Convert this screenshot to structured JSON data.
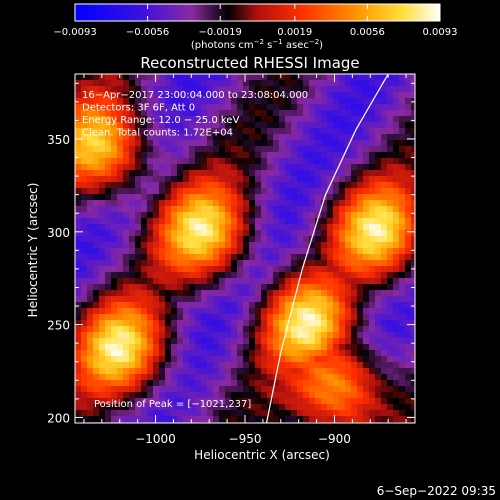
{
  "chart_data": {
    "type": "heatmap",
    "title": "Reconstructed RHESSI Image",
    "xlabel": "Heliocentric X (arcsec)",
    "ylabel": "Heliocentric Y (arcsec)",
    "xlim": [
      -1045,
      -855
    ],
    "ylim": [
      197,
      385
    ],
    "xticks": [
      -1000,
      -950,
      -900
    ],
    "xtick_labels": [
      "−1000",
      "−950",
      "−900"
    ],
    "yticks": [
      200,
      250,
      300,
      350
    ],
    "ytick_labels": [
      "200",
      "250",
      "300",
      "350"
    ],
    "colorbar": {
      "min": -0.0093,
      "max": 0.0093,
      "ticks": [
        -0.0093,
        -0.0056,
        -0.0019,
        0.0019,
        0.0056,
        0.0093
      ],
      "tick_labels": [
        "−0.0093",
        "−0.0056",
        "−0.0019",
        "0.0019",
        "0.0056",
        "0.0093"
      ],
      "units_text": "(photons cm",
      "units_exp1": "−2",
      "units_mid": " s",
      "units_exp2": "−1",
      "units_end": " asec",
      "units_exp3": "−2",
      "units_close": ")"
    },
    "annotations": [
      "16−Apr−2017 23:00:04.000 to 23:08:04.000",
      "Detectors: 3F 6F, Att 0",
      "Energy Range: 12.0 − 25.0 keV",
      "Clean.  Total counts: 1.72E+04"
    ],
    "peak_label": "Position of Peak = [−1021,237]",
    "limb_curve": [
      [
        -938,
        197
      ],
      [
        -930,
        235
      ],
      [
        -918,
        280
      ],
      [
        -905,
        320
      ],
      [
        -888,
        355
      ],
      [
        -870,
        385
      ]
    ],
    "pattern": {
      "stripe_direction": "diagonal, lower-left to upper-right",
      "bright_blobs": [
        [
          -1020,
          237
        ],
        [
          -973,
          300
        ],
        [
          -1030,
          345
        ],
        [
          -898,
          215
        ],
        [
          -875,
          300
        ],
        [
          -915,
          250
        ]
      ],
      "colors": [
        "#0000ff",
        "#5a1bcf",
        "#7a2fb0",
        "#000000",
        "#c01010",
        "#ff5a00",
        "#ffb000",
        "#ffff40",
        "#ffffff"
      ]
    }
  },
  "footer": {
    "timestamp": "6−Sep−2022 09:35"
  }
}
